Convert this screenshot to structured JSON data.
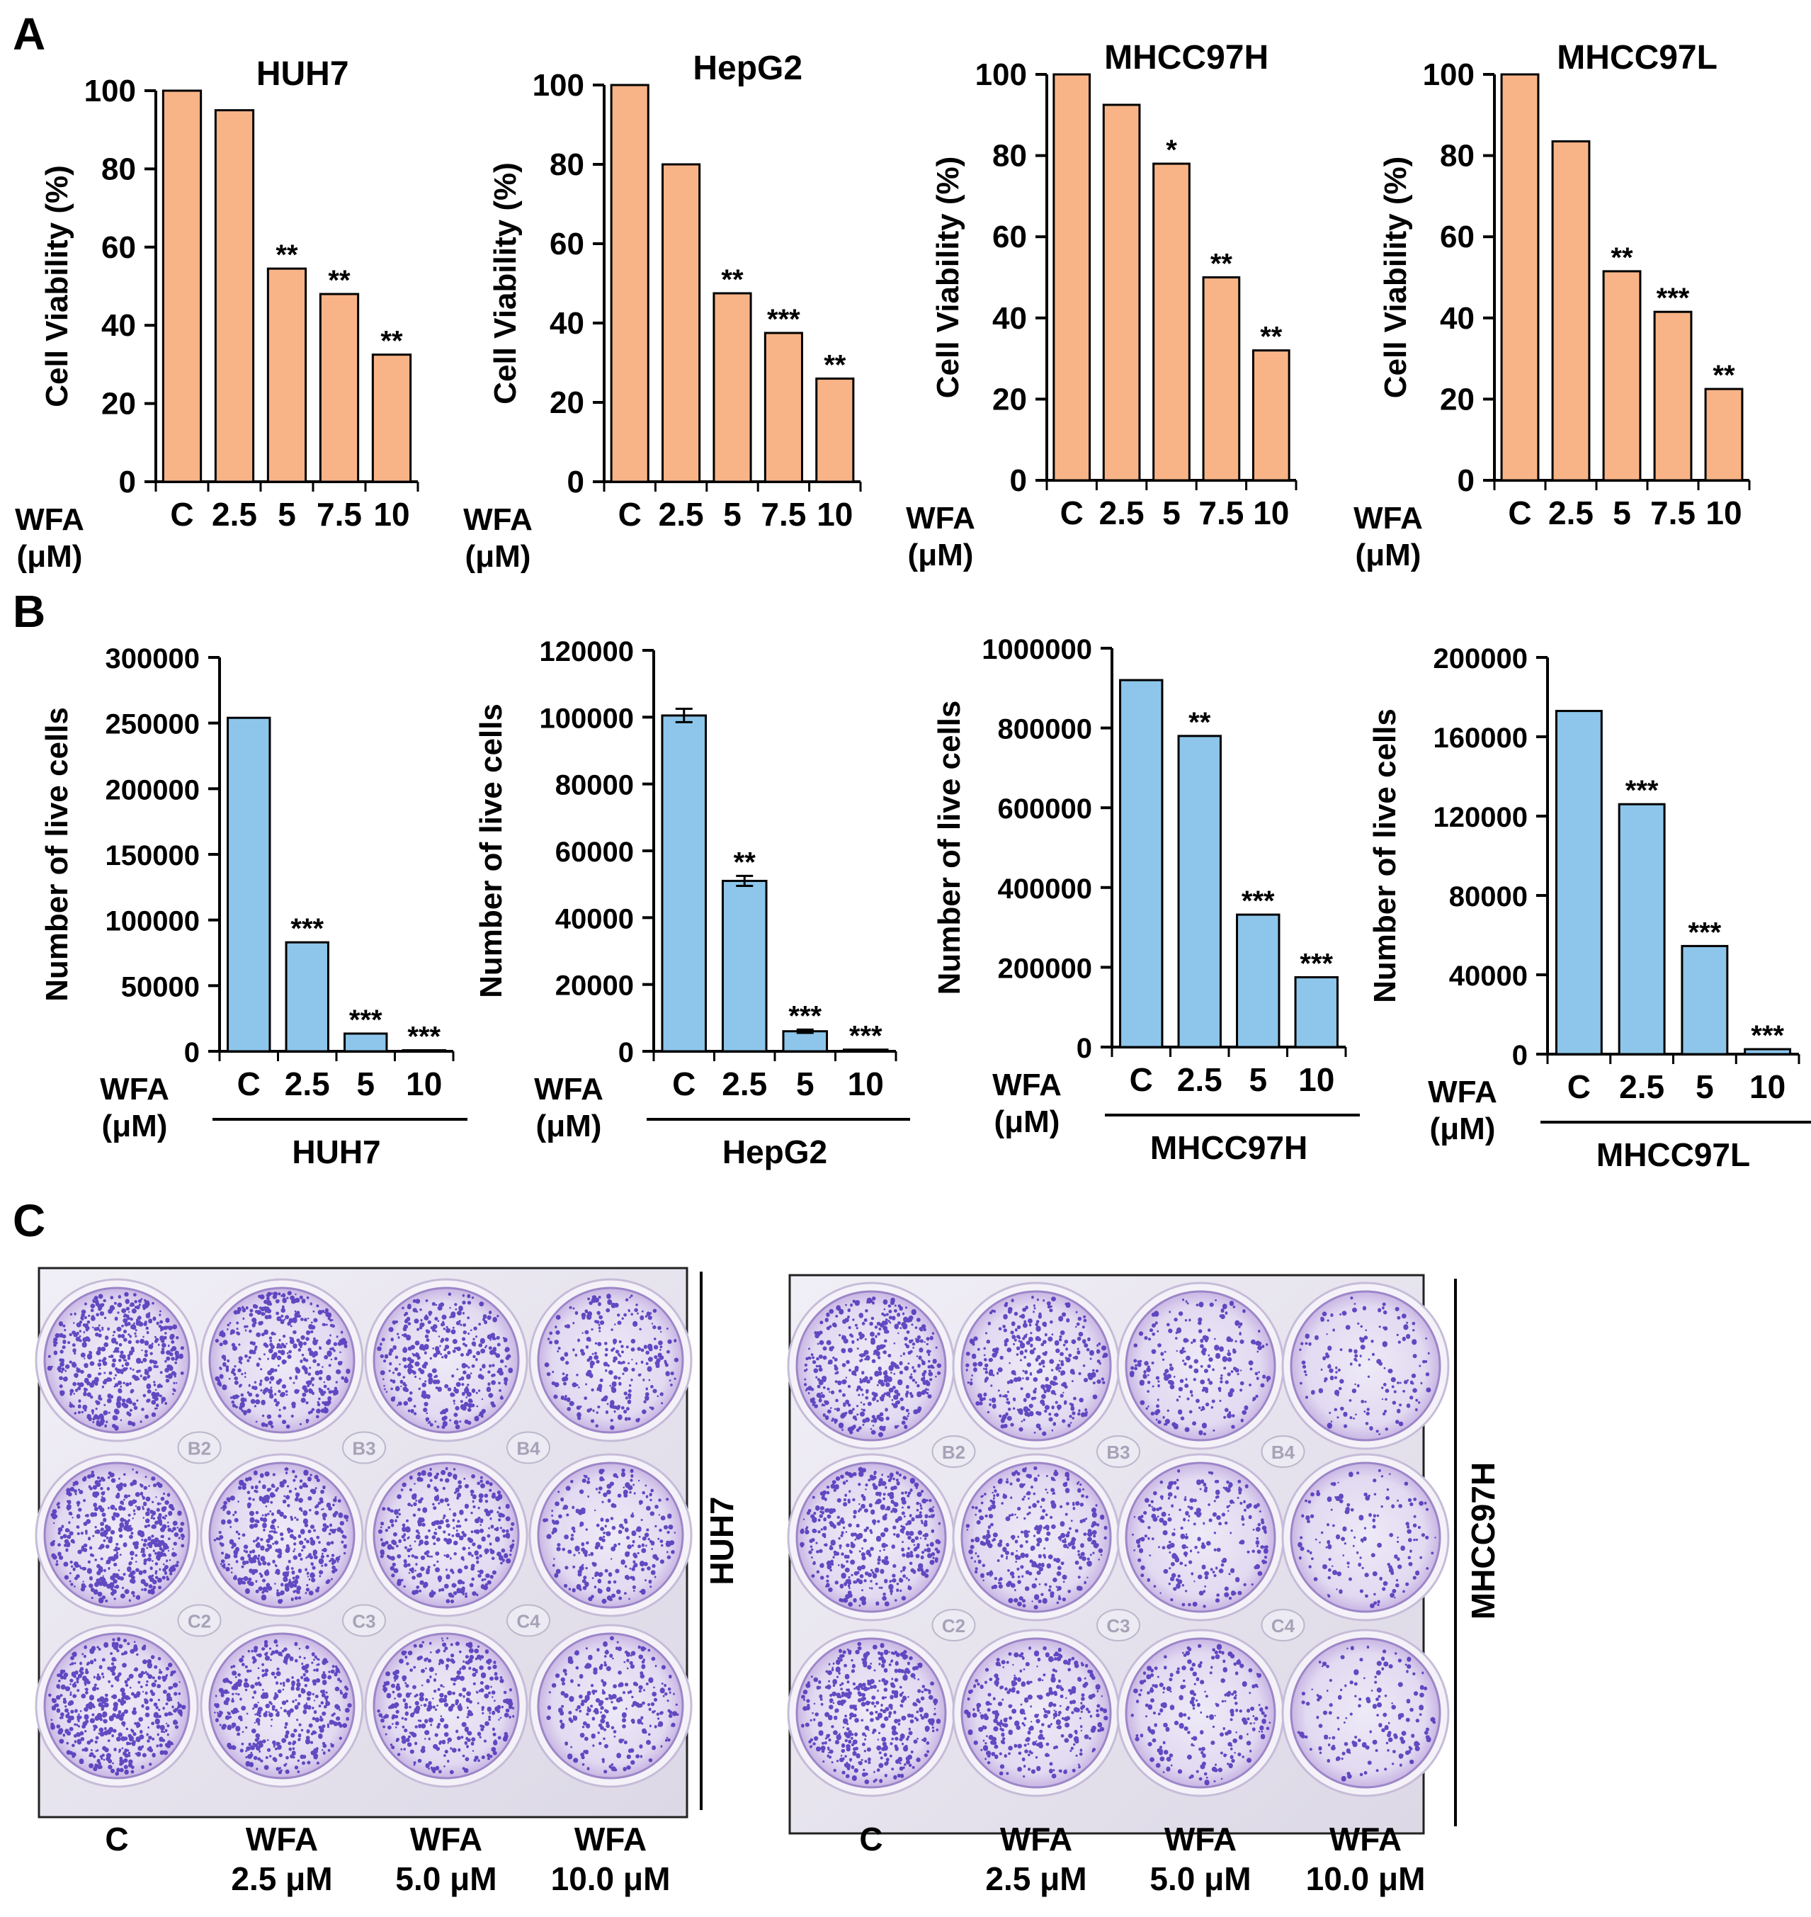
{
  "panel_labels": [
    "A",
    "B",
    "C"
  ],
  "colors": {
    "viability_bar": "#F8B487",
    "live_cells_bar": "#8DC6EA",
    "stroke": "#000000",
    "stain": "#4A2FB8",
    "well_bg": "#E7E1F3"
  },
  "axis_prefix": {
    "wfa": "WFA",
    "unit": "(μM)"
  },
  "chart_data": [
    {
      "id": "viability-huh7",
      "type": "bar",
      "title": "HUH7",
      "ylabel": "Cell Viability (%)",
      "ylim": [
        0,
        100
      ],
      "yticks": [
        0,
        20,
        40,
        60,
        80,
        100
      ],
      "categories": [
        "C",
        "2.5",
        "5",
        "7.5",
        "10"
      ],
      "values": [
        100,
        95,
        54.5,
        48,
        32.5
      ],
      "errors": [
        0,
        0,
        0,
        0,
        0
      ],
      "significance": [
        "",
        "",
        "**",
        "**",
        "**"
      ]
    },
    {
      "id": "viability-hepg2",
      "type": "bar",
      "title": "HepG2",
      "ylabel": "Cell Viability (%)",
      "ylim": [
        0,
        100
      ],
      "yticks": [
        0,
        20,
        40,
        60,
        80,
        100
      ],
      "categories": [
        "C",
        "2.5",
        "5",
        "7.5",
        "10"
      ],
      "values": [
        100,
        80,
        47.5,
        37.5,
        26
      ],
      "errors": [
        0,
        0,
        0,
        0,
        0
      ],
      "significance": [
        "",
        "",
        "**",
        "***",
        "**"
      ]
    },
    {
      "id": "viability-mhcc97h",
      "type": "bar",
      "title": "MHCC97H",
      "ylabel": "Cell Viability (%)",
      "ylim": [
        0,
        100
      ],
      "yticks": [
        0,
        20,
        40,
        60,
        80,
        100
      ],
      "categories": [
        "C",
        "2.5",
        "5",
        "7.5",
        "10"
      ],
      "values": [
        100,
        92.5,
        78,
        50,
        32
      ],
      "errors": [
        0,
        0,
        0,
        0,
        0
      ],
      "significance": [
        "",
        "",
        "*",
        "**",
        "**"
      ]
    },
    {
      "id": "viability-mhcc97l",
      "type": "bar",
      "title": "MHCC97L",
      "ylabel": "Cell Viability (%)",
      "ylim": [
        0,
        100
      ],
      "yticks": [
        0,
        20,
        40,
        60,
        80,
        100
      ],
      "categories": [
        "C",
        "2.5",
        "5",
        "7.5",
        "10"
      ],
      "values": [
        100,
        83.5,
        51.5,
        41.5,
        22.5
      ],
      "errors": [
        0,
        0,
        0,
        0,
        0
      ],
      "significance": [
        "",
        "",
        "**",
        "***",
        "**"
      ]
    },
    {
      "id": "live-huh7",
      "type": "bar",
      "title": "",
      "group_label": "HUH7",
      "ylabel": "Number of live cells",
      "ylim": [
        0,
        300000
      ],
      "yticks": [
        0,
        50000,
        100000,
        150000,
        200000,
        250000,
        300000
      ],
      "categories": [
        "C",
        "2.5",
        "5",
        "10"
      ],
      "values": [
        254000,
        83000,
        13500,
        800
      ],
      "errors": [
        0,
        0,
        0,
        0
      ],
      "significance": [
        "",
        "***",
        "***",
        "***"
      ]
    },
    {
      "id": "live-hepg2",
      "type": "bar",
      "title": "",
      "group_label": "HepG2",
      "ylabel": "Number of live cells",
      "ylim": [
        0,
        120000
      ],
      "yticks": [
        0,
        20000,
        40000,
        60000,
        80000,
        100000,
        120000
      ],
      "categories": [
        "C",
        "2.5",
        "5",
        "10"
      ],
      "values": [
        100500,
        51000,
        6000,
        500
      ],
      "errors": [
        2000,
        1500,
        500,
        0
      ],
      "significance": [
        "",
        "**",
        "***",
        "***"
      ]
    },
    {
      "id": "live-mhcc97h",
      "type": "bar",
      "title": "",
      "group_label": "MHCC97H",
      "ylabel": "Number of live cells",
      "ylim": [
        0,
        1000000
      ],
      "yticks": [
        0,
        200000,
        400000,
        600000,
        800000,
        1000000
      ],
      "categories": [
        "C",
        "2.5",
        "5",
        "10"
      ],
      "values": [
        920000,
        780000,
        332000,
        175000
      ],
      "errors": [
        0,
        0,
        0,
        0
      ],
      "significance": [
        "",
        "**",
        "***",
        "***"
      ]
    },
    {
      "id": "live-mhcc97l",
      "type": "bar",
      "title": "",
      "group_label": "MHCC97L",
      "ylabel": "Number of live cells",
      "ylim": [
        0,
        200000
      ],
      "yticks": [
        0,
        40000,
        80000,
        120000,
        160000,
        200000
      ],
      "categories": [
        "C",
        "2.5",
        "5",
        "10"
      ],
      "values": [
        173000,
        126000,
        54500,
        2500
      ],
      "errors": [
        0,
        0,
        0,
        0
      ],
      "significance": [
        "",
        "***",
        "***",
        "***"
      ]
    }
  ],
  "plates": [
    {
      "cell_line": "HUH7",
      "well_labels": [
        "B2",
        "B3",
        "B4",
        "C2",
        "C3",
        "C4"
      ],
      "colony_density": [
        0.95,
        0.8,
        0.7,
        0.5
      ],
      "column_labels": [
        [
          "C"
        ],
        [
          "WFA",
          "2.5 μM"
        ],
        [
          "WFA",
          "5.0 μM"
        ],
        [
          "WFA",
          "10.0 μM"
        ]
      ]
    },
    {
      "cell_line": "MHCC97H",
      "well_labels": [
        "B2",
        "B3",
        "B4",
        "C2",
        "C3",
        "C4"
      ],
      "colony_density": [
        0.85,
        0.65,
        0.45,
        0.3
      ],
      "column_labels": [
        [
          "C"
        ],
        [
          "WFA",
          "2.5 μM"
        ],
        [
          "WFA",
          "5.0 μM"
        ],
        [
          "WFA",
          "10.0 μM"
        ]
      ]
    }
  ]
}
